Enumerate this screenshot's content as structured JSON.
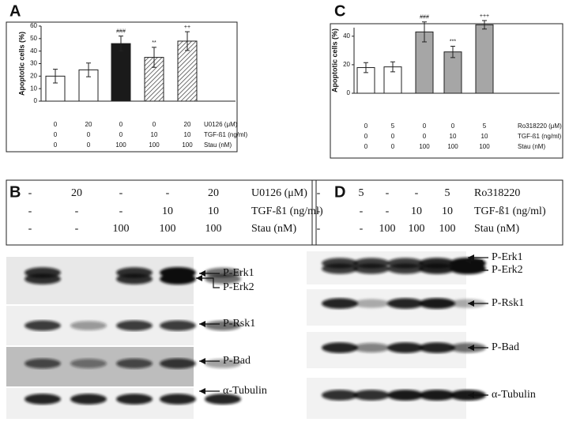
{
  "chart_data": [
    {
      "type": "bar",
      "label": "A",
      "ylabel": "Apoptotic cells (%)",
      "values": [
        20,
        25,
        46,
        35,
        48
      ],
      "errors": [
        5.5,
        5.5,
        6,
        8,
        7.5
      ],
      "annotations": [
        null,
        null,
        "###",
        "**",
        "++"
      ],
      "colors": [
        "#ffffff",
        "#ffffff",
        "#1a1a1a",
        "#ffffff",
        "#ffffff"
      ],
      "hatched": [
        false,
        false,
        false,
        true,
        true
      ],
      "ylim": [
        0,
        60
      ],
      "yticks": [
        0,
        10,
        20,
        30,
        40,
        50,
        60
      ],
      "treatments": [
        {
          "name": "U0126 (μM)",
          "values": [
            0,
            20,
            0,
            0,
            20
          ]
        },
        {
          "name": "TGF-ß1 (ng/ml)",
          "values": [
            0,
            0,
            0,
            10,
            10
          ]
        },
        {
          "name": "Stau (nM)",
          "values": [
            0,
            0,
            100,
            100,
            100
          ]
        }
      ]
    },
    {
      "type": "bar",
      "label": "C",
      "ylabel": "Apoptotic cells (%)",
      "values": [
        18,
        18.5,
        43,
        29,
        48
      ],
      "errors": [
        3.5,
        3.5,
        7,
        4,
        3
      ],
      "annotations": [
        null,
        null,
        "###",
        "***",
        "+++"
      ],
      "colors": [
        "#ffffff",
        "#ffffff",
        "#a6a6a6",
        "#a6a6a6",
        "#a6a6a6"
      ],
      "hatched": [
        false,
        false,
        false,
        false,
        false
      ],
      "ylim": [
        0,
        46
      ],
      "yticks": [
        0,
        20,
        40
      ],
      "treatments": [
        {
          "name": "Ro318220 (μM)",
          "values": [
            0,
            5,
            0,
            0,
            5
          ]
        },
        {
          "name": "TGF-ß1 (ng/ml)",
          "values": [
            0,
            0,
            0,
            10,
            10
          ]
        },
        {
          "name": "Stau (nM)",
          "values": [
            0,
            0,
            100,
            100,
            100
          ]
        }
      ]
    }
  ],
  "blots": [
    {
      "label": "B",
      "treatments": [
        {
          "name": "U0126 (μM)",
          "values": [
            "-",
            "20",
            "-",
            "-",
            "20"
          ]
        },
        {
          "name": "TGF-ß1 (ng/ml)",
          "values": [
            "-",
            "-",
            "-",
            "10",
            "10"
          ]
        },
        {
          "name": "Stau (nM)",
          "values": [
            "-",
            "-",
            "100",
            "100",
            "100"
          ]
        }
      ],
      "bands": [
        {
          "labels": [
            "P-Erk1",
            "P-Erk2"
          ]
        },
        {
          "labels": [
            "P-Rsk1"
          ]
        },
        {
          "labels": [
            "P-Bad"
          ]
        },
        {
          "labels": [
            "α-Tubulin"
          ]
        }
      ]
    },
    {
      "label": "D",
      "treatments": [
        {
          "name": "Ro318220",
          "values": [
            "-",
            "5",
            "-",
            "-",
            "5"
          ]
        },
        {
          "name": "TGF-ß1 (ng/ml)",
          "values": [
            "-",
            "-",
            "-",
            "10",
            "10"
          ]
        },
        {
          "name": "Stau (nM)",
          "values": [
            "-",
            "-",
            "100",
            "100",
            "100"
          ]
        }
      ],
      "bands": [
        {
          "labels": [
            "P-Erk1",
            "P-Erk2"
          ]
        },
        {
          "labels": [
            "P-Rsk1"
          ]
        },
        {
          "labels": [
            "P-Bad"
          ]
        },
        {
          "labels": [
            "α-Tubulin"
          ]
        }
      ]
    }
  ]
}
